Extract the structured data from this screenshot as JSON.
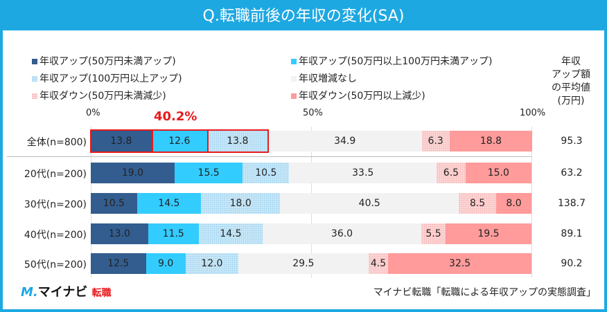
{
  "title": "Q.転職前後の年収の変化(SA)",
  "highlight": "40.2%",
  "avg_header": [
    "年収",
    "アップ額",
    "の平均値",
    "(万円)"
  ],
  "source": "マイナビ転職「転職による年収アップの実態調査」",
  "logo": {
    "mark": "M.",
    "name": "マイナビ",
    "sub": "転職"
  },
  "chart_data": {
    "type": "bar",
    "orientation": "horizontal",
    "stacked": true,
    "title": "Q.転職前後の年収の変化(SA)",
    "xlim": [
      0,
      100
    ],
    "ticks": [
      "0%",
      "50%",
      "100%"
    ],
    "categories": [
      "全体(n=800)",
      "20代(n=200)",
      "30代(n=200)",
      "40代(n=200)",
      "50代(n=200)"
    ],
    "series": [
      {
        "name": "年収アップ(50万円未満アップ)",
        "color": "#335d8f",
        "values": [
          13.8,
          19.0,
          10.5,
          13.0,
          12.5
        ]
      },
      {
        "name": "年収アップ(50万円以上100万円未満アップ)",
        "color": "#33ccff",
        "values": [
          12.6,
          15.5,
          14.5,
          11.5,
          9.0
        ]
      },
      {
        "name": "年収アップ(100万円以上アップ)",
        "color": "#cdeaf9",
        "values": [
          13.8,
          10.5,
          18.0,
          14.5,
          12.0
        ]
      },
      {
        "name": "年収増減なし",
        "color": "#f2f2f2",
        "values": [
          34.9,
          33.5,
          40.5,
          36.0,
          29.5
        ]
      },
      {
        "name": "年収ダウン(50万円未満減少)",
        "color": "#fcdada",
        "values": [
          6.3,
          6.5,
          8.5,
          5.5,
          4.5
        ]
      },
      {
        "name": "年収ダウン(50万円以上減少)",
        "color": "#ff9b9b",
        "values": [
          18.8,
          15.0,
          8.0,
          19.5,
          32.5
        ]
      }
    ],
    "avg_increase": [
      "95.3",
      "63.2",
      "138.7",
      "89.1",
      "90.2"
    ]
  }
}
